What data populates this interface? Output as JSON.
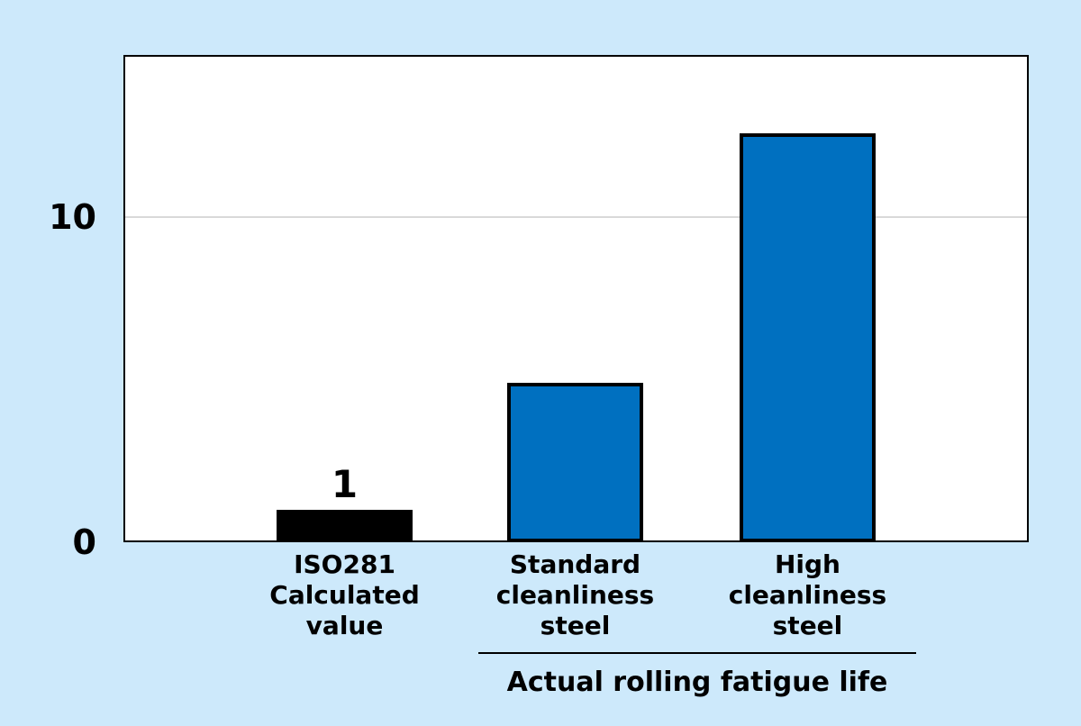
{
  "colors": {
    "page_background": "#CDE9FB",
    "plot_background": "#FFFFFF",
    "plot_border": "#000000",
    "grid_color": "#D9D9D9",
    "bar_blue": "#0070C0",
    "bar_black": "#000000",
    "bar_border": "#000000",
    "text": "#000000"
  },
  "chart_data": {
    "type": "bar",
    "title": "",
    "xlabel": "",
    "ylabel": "",
    "categories": [
      "ISO281\nCalculated\nvalue",
      "Standard\ncleanliness\nsteel",
      "High\ncleanliness\nsteel"
    ],
    "values": [
      1,
      4.9,
      12.6
    ],
    "data_labels": [
      "1",
      "",
      ""
    ],
    "bar_colors": [
      "#000000",
      "#0070C0",
      "#0070C0"
    ],
    "ylim": [
      0,
      15
    ],
    "yticks": [
      {
        "value": 0,
        "label": "0"
      },
      {
        "value": 10,
        "label": "10"
      }
    ],
    "gridline_values": [
      10
    ],
    "grid_on": true,
    "legend_position": "none",
    "group_label": {
      "text": "Actual rolling fatigue life",
      "applies_to_categories": [
        "Standard\ncleanliness\nsteel",
        "High\ncleanliness\nsteel"
      ]
    }
  }
}
